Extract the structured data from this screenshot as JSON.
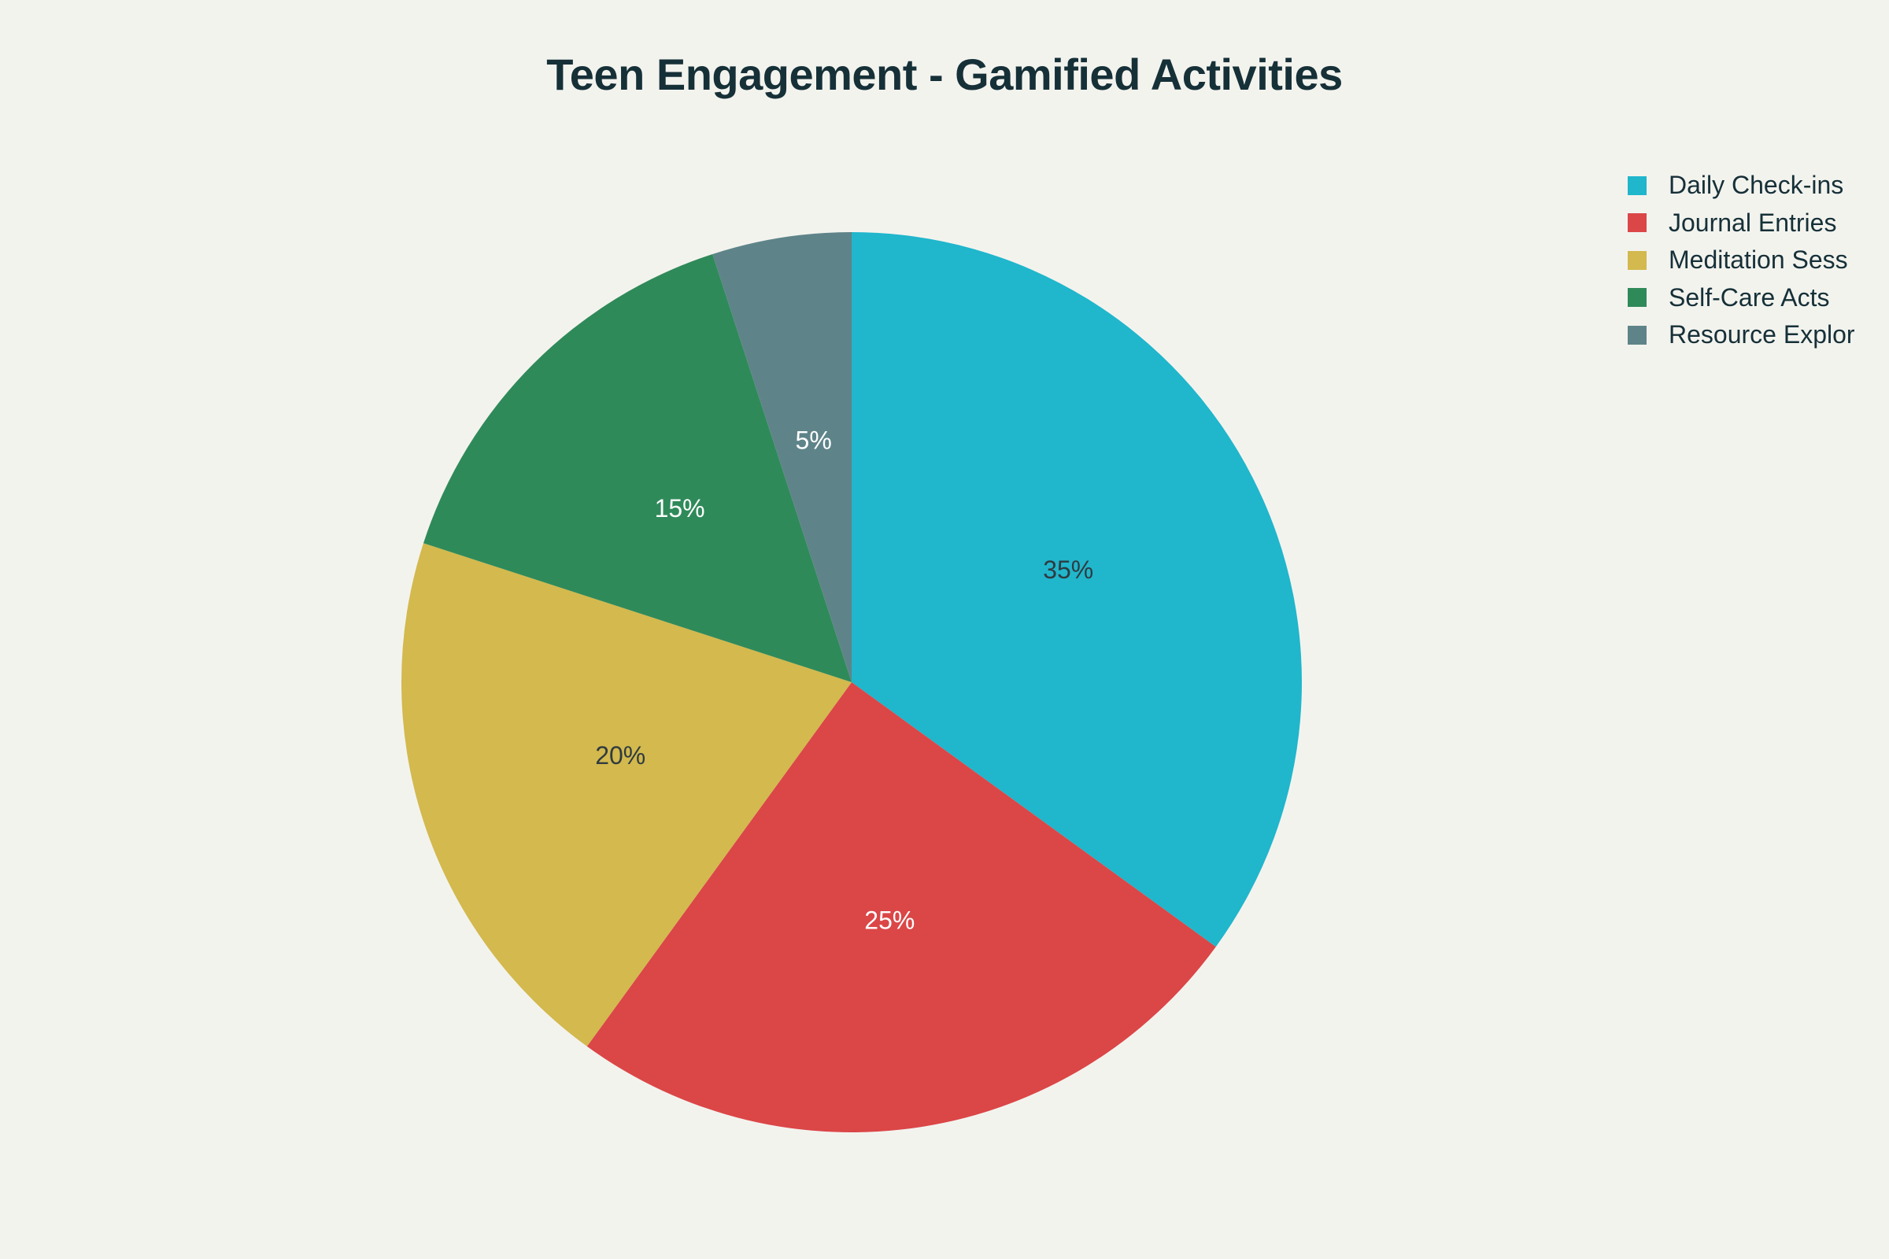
{
  "chart_data": {
    "type": "pie",
    "title": "Teen Engagement - Gamified Activities",
    "categories": [
      "Daily Check-ins",
      "Journal Entries",
      "Meditation Sess",
      "Self-Care Acts",
      "Resource Explor"
    ],
    "values": [
      35,
      25,
      20,
      15,
      5
    ],
    "value_labels": [
      "35%",
      "25%",
      "20%",
      "15%",
      "5%"
    ],
    "colors": [
      "#20b6cc",
      "#db4647",
      "#d3b94e",
      "#2f8a59",
      "#5e8489"
    ],
    "label_colors": [
      "#2f3b40",
      "#ffffff",
      "#2f3b40",
      "#ffffff",
      "#ffffff"
    ],
    "start_angle_deg": 0,
    "direction": "clockwise",
    "legend_position": "top-right"
  }
}
